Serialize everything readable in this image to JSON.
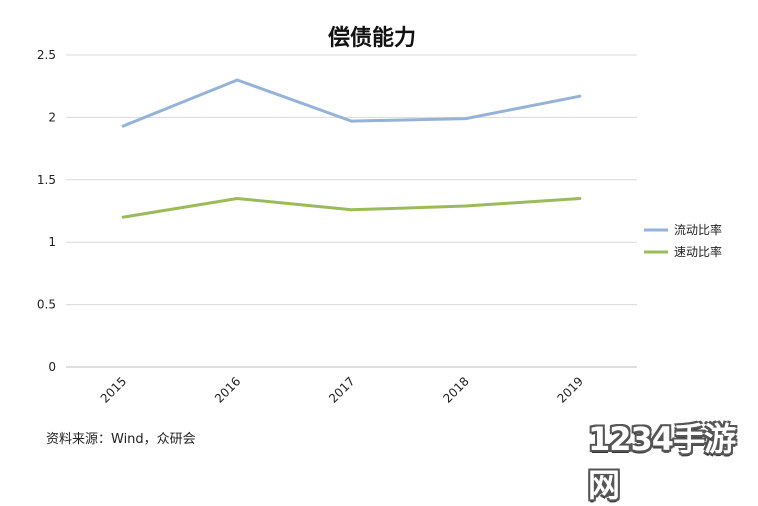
{
  "chart_data": {
    "type": "line",
    "title": "偿债能力",
    "categories": [
      "2015",
      "2016",
      "2017",
      "2018",
      "2019"
    ],
    "series": [
      {
        "name": "流动比率",
        "values": [
          1.93,
          2.3,
          1.97,
          1.99,
          2.17
        ],
        "color": "#95b3d7"
      },
      {
        "name": "速动比率",
        "values": [
          1.2,
          1.35,
          1.26,
          1.29,
          1.35
        ],
        "color": "#9bbb59"
      }
    ],
    "ylim": [
      0,
      2.5
    ],
    "yticks": [
      "0",
      "0.5",
      "1",
      "1.5",
      "2",
      "2.5"
    ],
    "grid": true,
    "legend_position": "right"
  },
  "source": "资料来源：Wind，众研会",
  "watermark": "1234手游网"
}
